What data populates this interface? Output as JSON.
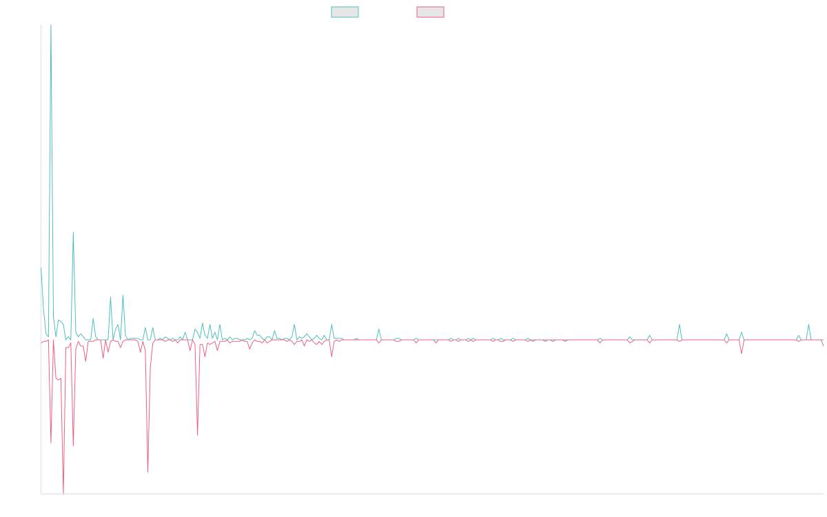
{
  "chart_data": {
    "type": "line",
    "title": "",
    "xlabel": "",
    "ylabel": "",
    "ylim": [
      -100,
      205
    ],
    "grid": false,
    "legend_placement": "top-center",
    "legend_fill": "#e6e6e6",
    "series": [
      {
        "color": "#4ebfbd",
        "sparse": [
          [
            0,
            47
          ],
          [
            1,
            20
          ],
          [
            2,
            4
          ],
          [
            3,
            2
          ],
          [
            4,
            205
          ],
          [
            5,
            15
          ],
          [
            6,
            2
          ],
          [
            7,
            13
          ],
          [
            8,
            12
          ],
          [
            9,
            10
          ],
          [
            10,
            0
          ],
          [
            11,
            2
          ],
          [
            12,
            0
          ],
          [
            13,
            70
          ],
          [
            14,
            5
          ],
          [
            15,
            2
          ],
          [
            16,
            4
          ],
          [
            17,
            2
          ],
          [
            18,
            0
          ],
          [
            19,
            0
          ],
          [
            20,
            0
          ],
          [
            21,
            14
          ],
          [
            22,
            2
          ],
          [
            23,
            0
          ],
          [
            24,
            0
          ],
          [
            25,
            0
          ],
          [
            26,
            0
          ],
          [
            27,
            0
          ],
          [
            28,
            28
          ],
          [
            29,
            0
          ],
          [
            30,
            7
          ],
          [
            31,
            10
          ],
          [
            32,
            0
          ],
          [
            33,
            29
          ],
          [
            34,
            3
          ],
          [
            35,
            0
          ],
          [
            36,
            1
          ],
          [
            37,
            1
          ],
          [
            38,
            1
          ],
          [
            39,
            1
          ],
          [
            40,
            0
          ],
          [
            41,
            0
          ],
          [
            42,
            8
          ],
          [
            43,
            0
          ],
          [
            44,
            0
          ],
          [
            45,
            8
          ],
          [
            48,
            1
          ],
          [
            49,
            0
          ],
          [
            50,
            2
          ],
          [
            51,
            1
          ],
          [
            53,
            1
          ],
          [
            55,
            0
          ],
          [
            56,
            2
          ],
          [
            58,
            5
          ],
          [
            60,
            0
          ],
          [
            61,
            0
          ],
          [
            62,
            7
          ],
          [
            63,
            5
          ],
          [
            64,
            1
          ],
          [
            65,
            11
          ],
          [
            66,
            3
          ],
          [
            67,
            1
          ],
          [
            68,
            10
          ],
          [
            69,
            1
          ],
          [
            70,
            5
          ],
          [
            71,
            0
          ],
          [
            72,
            10
          ],
          [
            73,
            0
          ],
          [
            74,
            1
          ],
          [
            75,
            0
          ],
          [
            76,
            2
          ],
          [
            77,
            0
          ],
          [
            78,
            1
          ],
          [
            79,
            1
          ],
          [
            80,
            0
          ],
          [
            82,
            0
          ],
          [
            83,
            1
          ],
          [
            84,
            0
          ],
          [
            85,
            1
          ],
          [
            86,
            6
          ],
          [
            87,
            3
          ],
          [
            88,
            3
          ],
          [
            89,
            1
          ],
          [
            90,
            0
          ],
          [
            91,
            2
          ],
          [
            92,
            2
          ],
          [
            94,
            6
          ],
          [
            95,
            1
          ],
          [
            96,
            1
          ],
          [
            98,
            1
          ],
          [
            99,
            1
          ],
          [
            101,
            2
          ],
          [
            102,
            10
          ],
          [
            103,
            0
          ],
          [
            104,
            2
          ],
          [
            105,
            1
          ],
          [
            106,
            2
          ],
          [
            107,
            4
          ],
          [
            108,
            2
          ],
          [
            109,
            0
          ],
          [
            110,
            1
          ],
          [
            111,
            3
          ],
          [
            112,
            1
          ],
          [
            113,
            0
          ],
          [
            114,
            3
          ],
          [
            115,
            0
          ],
          [
            116,
            0
          ],
          [
            117,
            10
          ],
          [
            118,
            1
          ],
          [
            119,
            1
          ],
          [
            120,
            1
          ],
          [
            121,
            1
          ],
          [
            125,
            0
          ],
          [
            127,
            1
          ],
          [
            136,
            7
          ],
          [
            137,
            0
          ],
          [
            143,
            1
          ],
          [
            144,
            1
          ],
          [
            145,
            0
          ],
          [
            151,
            1
          ],
          [
            159,
            0
          ],
          [
            160,
            0
          ],
          [
            165,
            1
          ],
          [
            168,
            1
          ],
          [
            172,
            1
          ],
          [
            174,
            1
          ],
          [
            182,
            1
          ],
          [
            185,
            1
          ],
          [
            186,
            0
          ],
          [
            190,
            1
          ],
          [
            196,
            1
          ],
          [
            198,
            0
          ],
          [
            203,
            0
          ],
          [
            206,
            0
          ],
          [
            211,
            0
          ],
          [
            213,
            0
          ],
          [
            222,
            0
          ],
          [
            225,
            1
          ],
          [
            227,
            0
          ],
          [
            232,
            0
          ],
          [
            237,
            2
          ],
          [
            238,
            0
          ],
          [
            245,
            3
          ],
          [
            257,
            10
          ],
          [
            276,
            4
          ],
          [
            282,
            5
          ],
          [
            305,
            3
          ],
          [
            309,
            10
          ],
          [
            311,
            0
          ],
          [
            315,
            0
          ]
        ]
      },
      {
        "color": "#ed5f7f",
        "sparse": [
          [
            0,
            -2
          ],
          [
            1,
            -1
          ],
          [
            2,
            -1
          ],
          [
            3,
            0
          ],
          [
            4,
            -67
          ],
          [
            5,
            0
          ],
          [
            6,
            -25
          ],
          [
            7,
            -26
          ],
          [
            8,
            -25
          ],
          [
            9,
            -100
          ],
          [
            10,
            -5
          ],
          [
            11,
            -5
          ],
          [
            12,
            -2
          ],
          [
            13,
            -69
          ],
          [
            14,
            -6
          ],
          [
            15,
            -1
          ],
          [
            16,
            -4
          ],
          [
            17,
            -4
          ],
          [
            18,
            -14
          ],
          [
            19,
            -1
          ],
          [
            20,
            -1
          ],
          [
            21,
            -1
          ],
          [
            22,
            0
          ],
          [
            23,
            0
          ],
          [
            24,
            0
          ],
          [
            25,
            -12
          ],
          [
            26,
            0
          ],
          [
            27,
            -8
          ],
          [
            28,
            -1
          ],
          [
            29,
            0
          ],
          [
            30,
            -1
          ],
          [
            31,
            -1
          ],
          [
            32,
            -5
          ],
          [
            33,
            -1
          ],
          [
            34,
            0
          ],
          [
            35,
            0
          ],
          [
            36,
            0
          ],
          [
            37,
            0
          ],
          [
            38,
            0
          ],
          [
            39,
            -1
          ],
          [
            40,
            -8
          ],
          [
            41,
            -1
          ],
          [
            42,
            -7
          ],
          [
            43,
            -86
          ],
          [
            44,
            -18
          ],
          [
            45,
            -2
          ],
          [
            48,
            0
          ],
          [
            49,
            0
          ],
          [
            50,
            -1
          ],
          [
            51,
            0
          ],
          [
            53,
            -1
          ],
          [
            55,
            -2
          ],
          [
            56,
            0
          ],
          [
            58,
            0
          ],
          [
            60,
            -7
          ],
          [
            61,
            0
          ],
          [
            62,
            -3
          ],
          [
            63,
            -62
          ],
          [
            64,
            -3
          ],
          [
            65,
            -3
          ],
          [
            66,
            -11
          ],
          [
            67,
            -2
          ],
          [
            68,
            -3
          ],
          [
            69,
            -2
          ],
          [
            70,
            -1
          ],
          [
            71,
            -7
          ],
          [
            72,
            -1
          ],
          [
            73,
            -1
          ],
          [
            74,
            -1
          ],
          [
            75,
            0
          ],
          [
            76,
            -2
          ],
          [
            77,
            -1
          ],
          [
            78,
            -1
          ],
          [
            79,
            -1
          ],
          [
            80,
            -1
          ],
          [
            82,
            -1
          ],
          [
            83,
            -1
          ],
          [
            84,
            -6
          ],
          [
            85,
            -2
          ],
          [
            86,
            0
          ],
          [
            87,
            -1
          ],
          [
            88,
            -1
          ],
          [
            89,
            -2
          ],
          [
            90,
            0
          ],
          [
            91,
            -2
          ],
          [
            92,
            -1
          ],
          [
            94,
            0
          ],
          [
            95,
            0
          ],
          [
            96,
            0
          ],
          [
            98,
            0
          ],
          [
            99,
            -1
          ],
          [
            101,
            -1
          ],
          [
            102,
            -3
          ],
          [
            103,
            -1
          ],
          [
            104,
            -1
          ],
          [
            105,
            0
          ],
          [
            106,
            -4
          ],
          [
            107,
            0
          ],
          [
            108,
            -1
          ],
          [
            109,
            0
          ],
          [
            110,
            -2
          ],
          [
            111,
            -3
          ],
          [
            112,
            -1
          ],
          [
            113,
            -3
          ],
          [
            114,
            -1
          ],
          [
            115,
            0
          ],
          [
            116,
            0
          ],
          [
            117,
            -11
          ],
          [
            118,
            -1
          ],
          [
            119,
            0
          ],
          [
            120,
            -1
          ],
          [
            121,
            0
          ],
          [
            125,
            0
          ],
          [
            127,
            0
          ],
          [
            136,
            -2
          ],
          [
            137,
            0
          ],
          [
            143,
            -1
          ],
          [
            144,
            -1
          ],
          [
            145,
            0
          ],
          [
            151,
            -2
          ],
          [
            159,
            -2
          ],
          [
            160,
            0
          ],
          [
            165,
            -1
          ],
          [
            168,
            -1
          ],
          [
            172,
            -1
          ],
          [
            174,
            -1
          ],
          [
            182,
            -1
          ],
          [
            185,
            -1
          ],
          [
            186,
            -1
          ],
          [
            190,
            -1
          ],
          [
            196,
            -1
          ],
          [
            198,
            -1
          ],
          [
            203,
            -1
          ],
          [
            206,
            -1
          ],
          [
            211,
            -1
          ],
          [
            213,
            0
          ],
          [
            222,
            0
          ],
          [
            225,
            -2
          ],
          [
            227,
            0
          ],
          [
            232,
            0
          ],
          [
            237,
            -2
          ],
          [
            238,
            -1
          ],
          [
            245,
            -2
          ],
          [
            257,
            -1
          ],
          [
            276,
            -2
          ],
          [
            282,
            -9
          ],
          [
            305,
            -1
          ],
          [
            309,
            0
          ],
          [
            311,
            0
          ],
          [
            315,
            -4
          ]
        ]
      }
    ]
  }
}
